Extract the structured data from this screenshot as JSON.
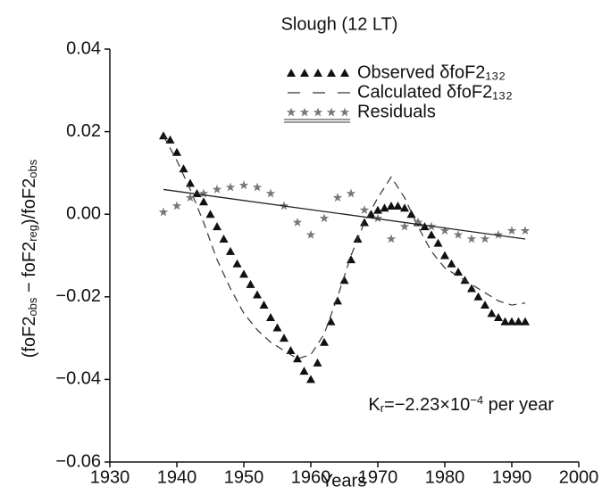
{
  "chart_data": {
    "type": "line",
    "title": "Slough (12 LT)",
    "xlabel": "Years",
    "ylabel": [
      {
        "text": "(foF2"
      },
      {
        "text": "obs",
        "sub": true
      },
      {
        "text": " − foF2"
      },
      {
        "text": "reg",
        "sub": true
      },
      {
        "text": ")/foF2"
      },
      {
        "text": "obs",
        "sub": true
      }
    ],
    "annotation": [
      {
        "text": "K"
      },
      {
        "text": "r",
        "sub": true
      },
      {
        "text": "=−2.23×10"
      },
      {
        "text": "−4",
        "sup": true
      },
      {
        "text": " per year"
      }
    ],
    "xlim": [
      1930,
      2000
    ],
    "xticks": [
      1930,
      1940,
      1950,
      1960,
      1970,
      1980,
      1990,
      2000
    ],
    "ylim": [
      -0.06,
      0.04
    ],
    "yticks": [
      {
        "value": 0.04,
        "label": "0.04"
      },
      {
        "value": 0.02,
        "label": "0.02"
      },
      {
        "value": 0,
        "label": "0.00"
      },
      {
        "value": -0.02,
        "label": "−0.02"
      },
      {
        "value": -0.04,
        "label": "−0.04"
      },
      {
        "value": -0.06,
        "label": "−0.06"
      }
    ],
    "series": [
      {
        "name": "Observed δfoF2₁₃₂",
        "color": "#111111",
        "marker": "triangle",
        "x": [
          1938,
          1939,
          1940,
          1941,
          1942,
          1943,
          1944,
          1945,
          1946,
          1947,
          1948,
          1949,
          1950,
          1951,
          1952,
          1953,
          1954,
          1955,
          1956,
          1957,
          1958,
          1959,
          1960,
          1961,
          1962,
          1963,
          1964,
          1965,
          1966,
          1967,
          1968,
          1969,
          1970,
          1971,
          1972,
          1973,
          1974,
          1975,
          1976,
          1977,
          1978,
          1979,
          1980,
          1981,
          1982,
          1983,
          1984,
          1985,
          1986,
          1987,
          1988,
          1989,
          1990,
          1991,
          1992
        ],
        "values": [
          0.019,
          0.018,
          0.015,
          0.011,
          0.0075,
          0.005,
          0.003,
          0,
          -0.003,
          -0.006,
          -0.009,
          -0.012,
          -0.0145,
          -0.017,
          -0.0195,
          -0.022,
          -0.025,
          -0.0275,
          -0.03,
          -0.033,
          -0.035,
          -0.038,
          -0.04,
          -0.036,
          -0.031,
          -0.026,
          -0.021,
          -0.016,
          -0.011,
          -0.006,
          -0.002,
          0,
          0.001,
          0.0015,
          0.002,
          0.002,
          0.0015,
          0,
          -0.002,
          -0.003,
          -0.005,
          -0.007,
          -0.01,
          -0.012,
          -0.014,
          -0.016,
          -0.018,
          -0.02,
          -0.022,
          -0.024,
          -0.025,
          -0.026,
          -0.026,
          -0.026,
          -0.026
        ]
      },
      {
        "name": "Calculated δfoF2₁₃₂",
        "color": "#333333",
        "marker": "dash",
        "x": [
          1938,
          1940,
          1942,
          1944,
          1946,
          1948,
          1950,
          1952,
          1954,
          1956,
          1958,
          1960,
          1962,
          1964,
          1966,
          1968,
          1970,
          1972,
          1974,
          1976,
          1978,
          1980,
          1982,
          1984,
          1986,
          1988,
          1990,
          1992
        ],
        "values": [
          0.019,
          0.013,
          0.006,
          -0.002,
          -0.011,
          -0.018,
          -0.024,
          -0.028,
          -0.031,
          -0.033,
          -0.035,
          -0.034,
          -0.029,
          -0.02,
          -0.01,
          -0.002,
          0.004,
          0.009,
          0.004,
          -0.003,
          -0.009,
          -0.013,
          -0.015,
          -0.017,
          -0.019,
          -0.021,
          -0.022,
          -0.0215
        ]
      },
      {
        "name": "Residuals",
        "color": "#777777",
        "marker": "star",
        "x": [
          1938,
          1940,
          1942,
          1944,
          1946,
          1948,
          1950,
          1952,
          1954,
          1956,
          1958,
          1960,
          1962,
          1964,
          1966,
          1968,
          1970,
          1972,
          1974,
          1976,
          1978,
          1980,
          1982,
          1984,
          1986,
          1988,
          1990,
          1992
        ],
        "values": [
          0.0005,
          0.002,
          0.004,
          0.005,
          0.006,
          0.0065,
          0.007,
          0.0065,
          0.005,
          0.002,
          -0.002,
          -0.005,
          -0.001,
          0.004,
          0.005,
          0.001,
          -0.001,
          -0.006,
          -0.003,
          -0.002,
          -0.003,
          -0.004,
          -0.005,
          -0.006,
          -0.006,
          -0.005,
          -0.004,
          -0.004
        ]
      }
    ],
    "trend": {
      "color": "#222222",
      "x": [
        1938,
        1992
      ],
      "values": [
        0.006,
        -0.006
      ]
    }
  }
}
